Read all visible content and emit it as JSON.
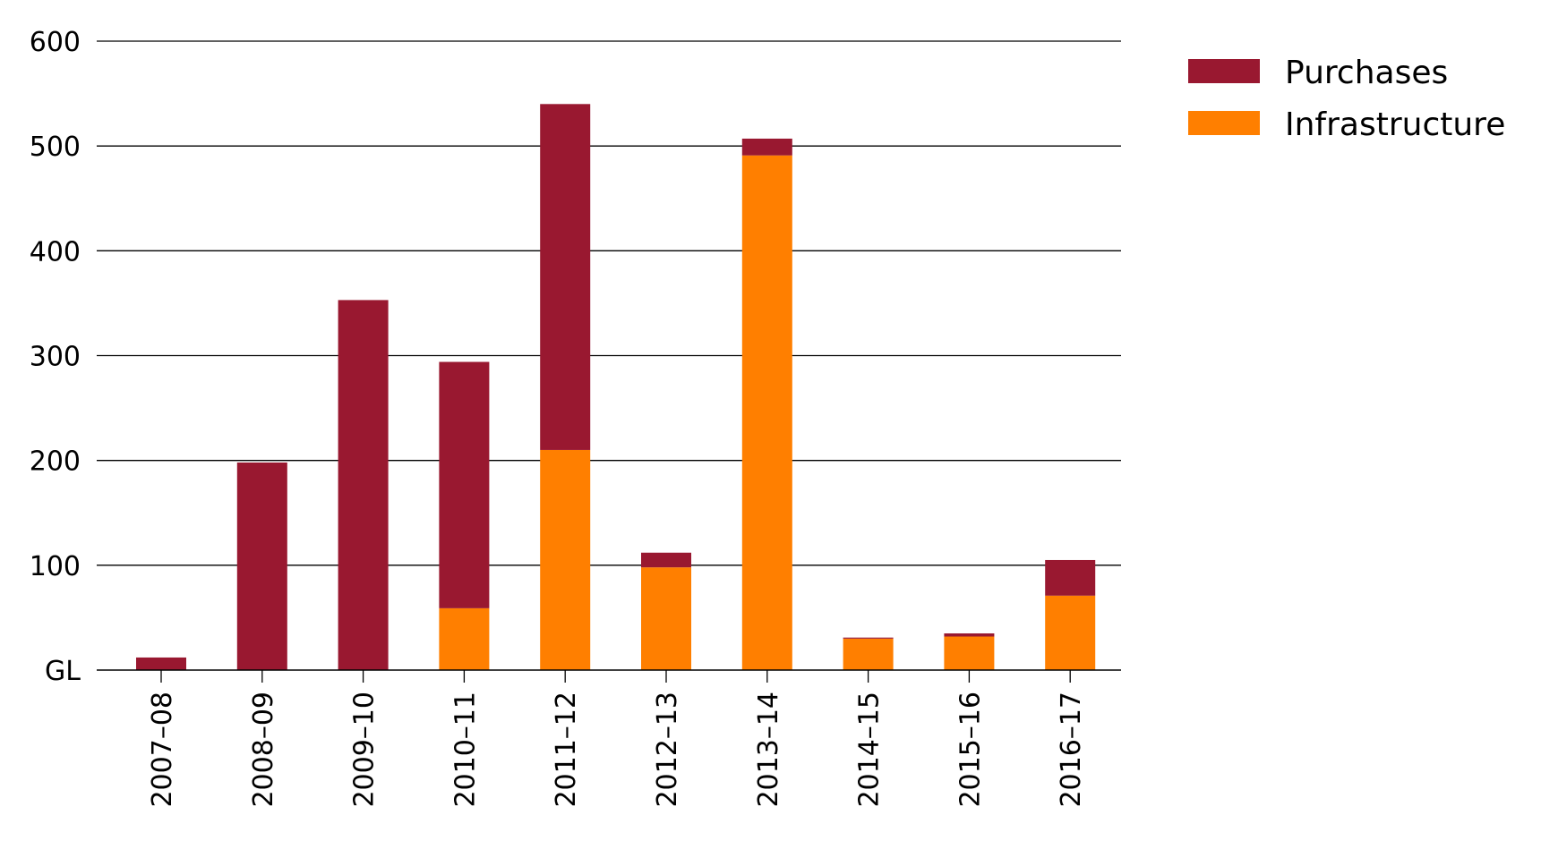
{
  "chart_data": {
    "type": "bar",
    "stacked": true,
    "categories": [
      "2007–08",
      "2008–09",
      "2009–10",
      "2010–11",
      "2011–12",
      "2012–13",
      "2013–14",
      "2014–15",
      "2015–16",
      "2016–17"
    ],
    "series": [
      {
        "name": "Infrastructure",
        "color": "#ff7f00",
        "values": [
          0,
          0,
          0,
          59,
          210,
          98,
          491,
          30,
          32,
          71
        ]
      },
      {
        "name": "Purchases",
        "color": "#991830",
        "values": [
          12,
          198,
          353,
          235,
          330,
          14,
          16,
          1,
          3,
          34
        ]
      }
    ],
    "y_ticks": [
      {
        "value": 0,
        "label": "GL"
      },
      {
        "value": 100,
        "label": "100"
      },
      {
        "value": 200,
        "label": "200"
      },
      {
        "value": 300,
        "label": "300"
      },
      {
        "value": 400,
        "label": "400"
      },
      {
        "value": 500,
        "label": "500"
      },
      {
        "value": 600,
        "label": "600"
      }
    ],
    "ylim": [
      0,
      600
    ],
    "grid": true,
    "legend": {
      "position": "top-right",
      "entries": [
        {
          "label": "Purchases",
          "color": "#991830"
        },
        {
          "label": "Infrastructure",
          "color": "#ff7f00"
        }
      ]
    }
  }
}
